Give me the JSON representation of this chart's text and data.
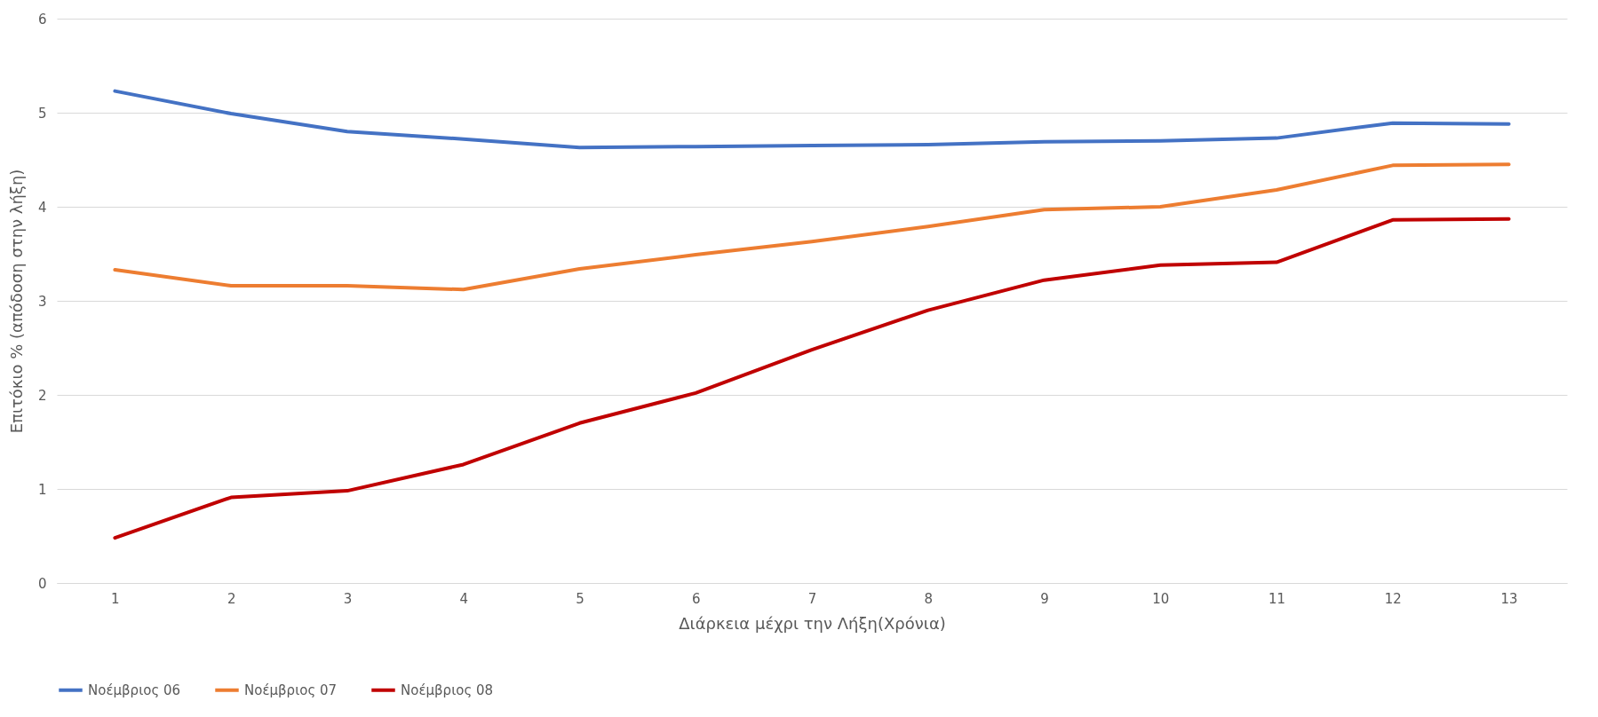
{
  "chart_data": {
    "type": "line",
    "xlabel": "Διάρκεια  μέχρι την Λήξη(Χρόνια)",
    "ylabel": "Επιτόκιο % (απόδοση στην λήξη)",
    "categories": [
      "1",
      "2",
      "3",
      "4",
      "5",
      "6",
      "7",
      "8",
      "9",
      "10",
      "11",
      "12",
      "13"
    ],
    "series": [
      {
        "name": "Νοέμβριος 06",
        "color": "#4472c4",
        "values": [
          5.23,
          4.99,
          4.8,
          4.72,
          4.63,
          4.64,
          4.65,
          4.66,
          4.69,
          4.7,
          4.73,
          4.89,
          4.88
        ]
      },
      {
        "name": "Νοέμβριος 07",
        "color": "#ed7d31",
        "values": [
          3.33,
          3.16,
          3.16,
          3.12,
          3.34,
          3.49,
          3.63,
          3.79,
          3.97,
          4.0,
          4.18,
          4.44,
          4.45
        ]
      },
      {
        "name": "Νοέμβριος 08",
        "color": "#c00000",
        "values": [
          0.48,
          0.91,
          0.98,
          1.26,
          1.7,
          2.02,
          2.48,
          2.9,
          3.22,
          3.38,
          3.41,
          3.86,
          3.87
        ]
      }
    ],
    "ylim": [
      0,
      6
    ],
    "yticks": [
      0,
      1,
      2,
      3,
      4,
      5,
      6
    ],
    "grid": "y",
    "legend": "bottom",
    "marker": "none",
    "line_style": "solid"
  }
}
